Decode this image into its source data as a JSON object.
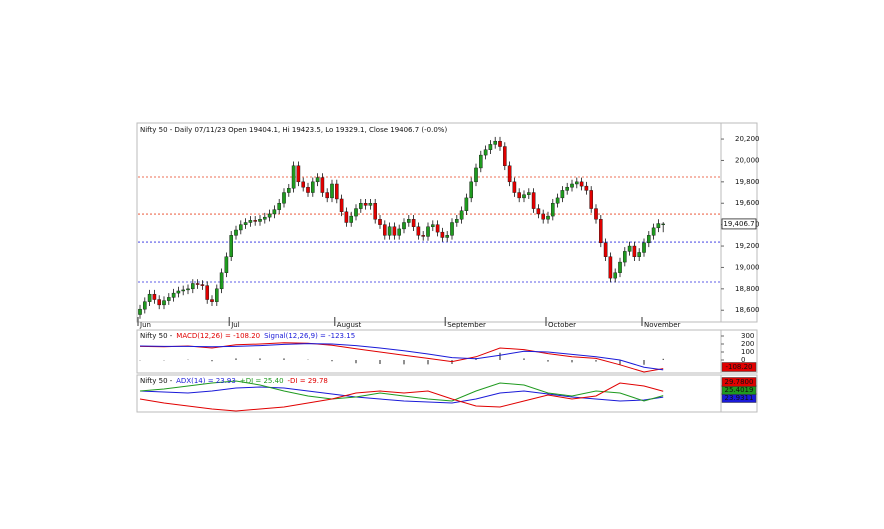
{
  "chart_data": [
    {
      "type": "candlestick",
      "title": "Nifty 50 - Daily 07/11/23 Open 19404.1, Hi 19423.5, Lo 19329.1, Close 19406.7 (-0.0%)",
      "open": [
        18560,
        18610,
        18680,
        18750,
        18700,
        18650,
        18690,
        18720,
        18760,
        18780,
        18790,
        18800,
        18850,
        18840,
        18830,
        18700,
        18680,
        18800,
        18950,
        19100,
        19300,
        19350,
        19400,
        19420,
        19440,
        19430,
        19450,
        19470,
        19500,
        19540,
        19600,
        19700,
        19740,
        19950,
        19800,
        19750,
        19700,
        19800,
        19840,
        19700,
        19650,
        19780,
        19640,
        19520,
        19420,
        19480,
        19550,
        19600,
        19580,
        19600,
        19450,
        19400,
        19300,
        19380,
        19300,
        19360,
        19420,
        19450,
        19380,
        19300,
        19290,
        19380,
        19400,
        19330,
        19280,
        19300,
        19420,
        19450,
        19530,
        19650,
        19800,
        19930,
        20050,
        20100,
        20150,
        20180,
        20130,
        19950,
        19800,
        19700,
        19650,
        19680,
        19700,
        19550,
        19500,
        19450,
        19480,
        19600,
        19650,
        19720,
        19750,
        19780,
        19800,
        19760,
        19720,
        19550,
        19450,
        19230,
        19100,
        18900,
        18950,
        19050,
        19150,
        19200,
        19100,
        19140,
        19230,
        19300,
        19370,
        19404.1
      ],
      "high": [
        18650,
        18720,
        18790,
        18790,
        18740,
        18730,
        18760,
        18800,
        18820,
        18830,
        18840,
        18890,
        18890,
        18880,
        18870,
        18740,
        18840,
        18990,
        19140,
        19340,
        19390,
        19440,
        19460,
        19480,
        19480,
        19490,
        19510,
        19540,
        19580,
        19640,
        19740,
        19780,
        19990,
        19990,
        19840,
        19790,
        19840,
        19880,
        19880,
        19740,
        19820,
        19820,
        19680,
        19560,
        19520,
        19590,
        19640,
        19640,
        19640,
        19640,
        19490,
        19440,
        19420,
        19420,
        19400,
        19460,
        19490,
        19490,
        19420,
        19340,
        19420,
        19440,
        19440,
        19370,
        19340,
        19460,
        19490,
        19570,
        19690,
        19840,
        19970,
        20090,
        20140,
        20190,
        20220,
        20220,
        20170,
        19990,
        19840,
        19740,
        19720,
        19740,
        19740,
        19590,
        19540,
        19520,
        19640,
        19690,
        19760,
        19790,
        19820,
        19840,
        19840,
        19800,
        19760,
        19590,
        19490,
        19270,
        19140,
        18990,
        19090,
        19190,
        19240,
        19240,
        19180,
        19270,
        19340,
        19410,
        19450,
        19423.5
      ],
      "low": [
        18520,
        18570,
        18640,
        18660,
        18610,
        18610,
        18650,
        18680,
        18720,
        18740,
        18750,
        18760,
        18800,
        18790,
        18660,
        18640,
        18640,
        18760,
        18910,
        19060,
        19260,
        19310,
        19360,
        19380,
        19390,
        19390,
        19410,
        19430,
        19460,
        19500,
        19560,
        19660,
        19700,
        19760,
        19710,
        19660,
        19660,
        19760,
        19660,
        19610,
        19610,
        19600,
        19480,
        19380,
        19380,
        19440,
        19510,
        19540,
        19540,
        19410,
        19360,
        19260,
        19260,
        19260,
        19260,
        19320,
        19380,
        19340,
        19260,
        19250,
        19250,
        19340,
        19290,
        19240,
        19240,
        19260,
        19380,
        19410,
        19490,
        19610,
        19760,
        19890,
        20010,
        20060,
        20110,
        20090,
        19910,
        19760,
        19660,
        19610,
        19610,
        19640,
        19510,
        19460,
        19410,
        19410,
        19440,
        19560,
        19610,
        19680,
        19710,
        19740,
        19720,
        19680,
        19510,
        19410,
        19190,
        19060,
        18860,
        18860,
        18910,
        19010,
        19110,
        19060,
        19060,
        19100,
        19190,
        19260,
        19330,
        19329.1
      ],
      "close": [
        18610,
        18680,
        18750,
        18700,
        18650,
        18690,
        18720,
        18760,
        18780,
        18790,
        18800,
        18850,
        18840,
        18830,
        18700,
        18680,
        18800,
        18950,
        19100,
        19300,
        19350,
        19400,
        19420,
        19440,
        19430,
        19450,
        19470,
        19500,
        19540,
        19600,
        19700,
        19740,
        19950,
        19800,
        19750,
        19700,
        19800,
        19840,
        19700,
        19650,
        19780,
        19640,
        19520,
        19420,
        19480,
        19550,
        19600,
        19580,
        19600,
        19450,
        19400,
        19300,
        19380,
        19300,
        19360,
        19420,
        19450,
        19380,
        19300,
        19290,
        19380,
        19400,
        19330,
        19280,
        19300,
        19420,
        19450,
        19530,
        19650,
        19800,
        19930,
        20050,
        20100,
        20150,
        20180,
        20130,
        19950,
        19800,
        19700,
        19650,
        19680,
        19700,
        19550,
        19500,
        19450,
        19480,
        19600,
        19650,
        19720,
        19750,
        19780,
        19800,
        19760,
        19720,
        19550,
        19450,
        19230,
        19100,
        18900,
        18950,
        19050,
        19150,
        19200,
        19100,
        19140,
        19230,
        19300,
        19370,
        19410,
        19406.7
      ],
      "up_color": "#1f9a1f",
      "down_color": "#e00000",
      "x_labels": [
        {
          "index": 0,
          "label": "Jun"
        },
        {
          "index": 19,
          "label": "Jul"
        },
        {
          "index": 41,
          "label": "August"
        },
        {
          "index": 64,
          "label": "September"
        },
        {
          "index": 85,
          "label": "October"
        },
        {
          "index": 105,
          "label": "November"
        }
      ],
      "ylim": [
        18490,
        20350
      ],
      "yticks": [
        {
          "value": 18600,
          "label": "18,600"
        },
        {
          "value": 18800,
          "label": "18,800"
        },
        {
          "value": 19000,
          "label": "19,000"
        },
        {
          "value": 19200,
          "label": "19,200"
        },
        {
          "value": 19400,
          "label": "19,400"
        },
        {
          "value": 19600,
          "label": "19,600"
        },
        {
          "value": 19800,
          "label": "19,800"
        },
        {
          "value": 20000,
          "label": "20,000"
        },
        {
          "value": 20200,
          "label": "20,200"
        }
      ],
      "levels": [
        {
          "value": 19845,
          "color": "#e8401c"
        },
        {
          "value": 19499,
          "color": "#e8401c"
        },
        {
          "value": 19237,
          "color": "#2a2ae0"
        },
        {
          "value": 18864,
          "color": "#2a2ae0"
        }
      ],
      "last_label": "19,406.7"
    },
    {
      "type": "macd",
      "label": "Nifty 50 -",
      "x": [
        0,
        5,
        10,
        15,
        20,
        25,
        30,
        35,
        40,
        45,
        50,
        55,
        60,
        65,
        70,
        75,
        80,
        85,
        90,
        95,
        100,
        105,
        109
      ],
      "series": [
        {
          "name": "MACD(12,26) = -108.20",
          "color": "#e00000",
          "values": [
            170,
            165,
            175,
            150,
            190,
            200,
            215,
            210,
            185,
            140,
            100,
            60,
            20,
            -20,
            40,
            150,
            130,
            80,
            40,
            20,
            -60,
            -150,
            -108.2
          ],
          "box_label": "-108.20"
        },
        {
          "name": "Signal(12,26,9) = -123.15",
          "color": "#1a1ad8",
          "values": [
            175,
            170,
            170,
            165,
            170,
            180,
            195,
            205,
            200,
            180,
            150,
            115,
            75,
            30,
            15,
            60,
            110,
            100,
            70,
            40,
            0,
            -90,
            -123.15
          ]
        }
      ],
      "histogram": {
        "color": "#222222",
        "values": [
          -5,
          -5,
          5,
          -15,
          20,
          20,
          20,
          5,
          -15,
          -40,
          -50,
          -55,
          -55,
          -50,
          25,
          90,
          20,
          -20,
          -30,
          -20,
          -60,
          -60,
          15
        ]
      },
      "ylim": [
        -150,
        350
      ],
      "yticks": [
        0,
        100,
        200,
        300
      ]
    },
    {
      "type": "line",
      "label": "Nifty 50 -",
      "x": [
        0,
        5,
        10,
        15,
        20,
        25,
        30,
        35,
        40,
        45,
        50,
        55,
        60,
        65,
        70,
        75,
        80,
        85,
        90,
        95,
        100,
        105,
        109
      ],
      "series": [
        {
          "name": "ADX(14) = 23.93",
          "color": "#1a1ad8",
          "values": [
            30,
            29,
            28,
            30,
            33,
            34,
            33,
            30,
            27,
            24,
            22,
            20,
            19,
            18,
            22,
            28,
            30,
            27,
            24,
            22,
            20,
            21,
            23.93
          ],
          "box_label": "23.9311"
        },
        {
          "name": "+DI = 25.40",
          "color": "#1f9a1f",
          "values": [
            30,
            32,
            35,
            38,
            40,
            36,
            30,
            25,
            22,
            24,
            28,
            25,
            22,
            20,
            30,
            38,
            36,
            28,
            25,
            30,
            28,
            20,
            25.4
          ],
          "box_label": "25.4019"
        },
        {
          "name": "-DI = 29.78",
          "color": "#e00000",
          "values": [
            22,
            18,
            15,
            12,
            10,
            12,
            14,
            18,
            22,
            28,
            30,
            28,
            30,
            22,
            15,
            14,
            20,
            26,
            22,
            25,
            38,
            35,
            29.78
          ],
          "box_label": "29.7800"
        }
      ],
      "ylim": [
        10,
        45
      ]
    }
  ]
}
